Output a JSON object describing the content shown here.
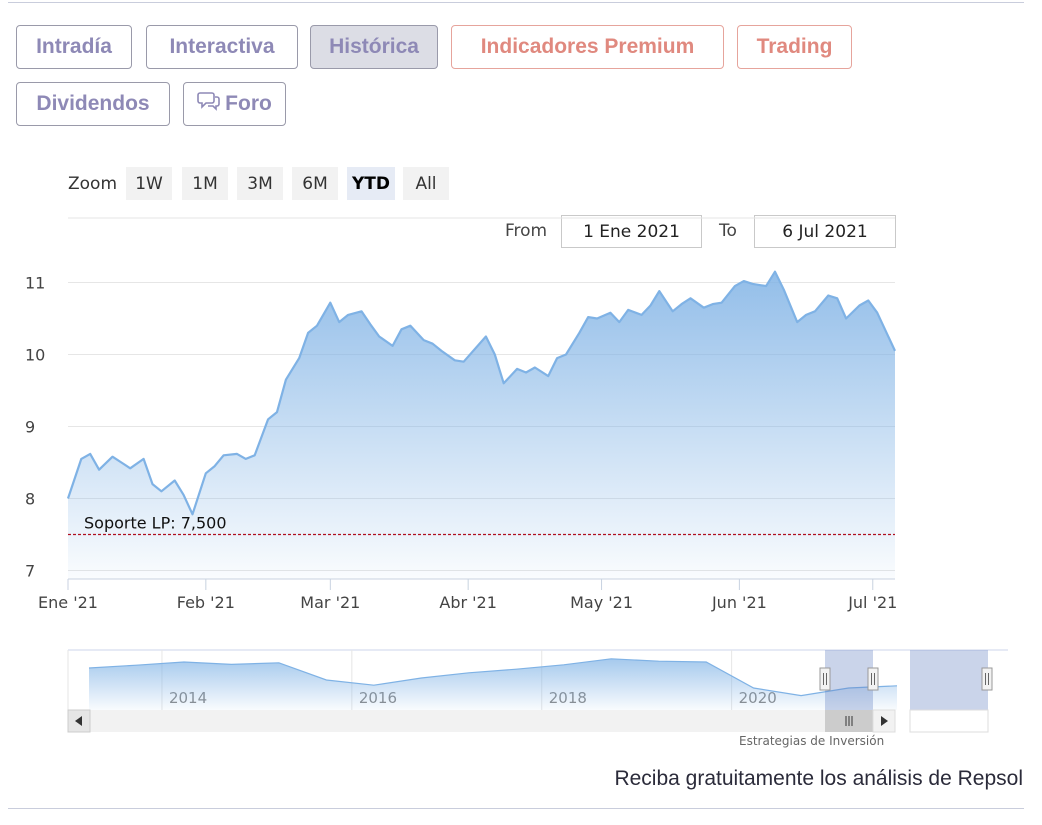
{
  "tabs": [
    {
      "label": "Intradía",
      "state": "normal"
    },
    {
      "label": "Interactiva",
      "state": "normal"
    },
    {
      "label": "Histórica",
      "state": "active"
    },
    {
      "label": "Indicadores Premium",
      "state": "premium"
    },
    {
      "label": "Trading",
      "state": "premium"
    },
    {
      "label": "Dividendos",
      "state": "normal"
    },
    {
      "label": "Foro",
      "state": "normal",
      "icon": "chat-bubbles-icon"
    }
  ],
  "zoom": {
    "label": "Zoom",
    "options": [
      "1W",
      "1M",
      "3M",
      "6M",
      "YTD",
      "All"
    ],
    "selected": "YTD"
  },
  "range": {
    "from_label": "From",
    "from_value": "1 Ene 2021",
    "to_label": "To",
    "to_value": "6 Jul 2021"
  },
  "credit": "Estrategias de Inversión",
  "cta": "Reciba gratuitamente los análisis de Repsol",
  "colors": {
    "tab_text": "#8e89b6",
    "premium_text": "#e0897f",
    "series_line": "#7fb2e5",
    "support_line": "#b01020"
  },
  "chart_data": {
    "type": "area",
    "title": "",
    "ylim": [
      7,
      11.2
    ],
    "yticks": [
      7,
      8,
      9,
      10,
      11
    ],
    "x_tick_labels": [
      "Ene '21",
      "Feb '21",
      "Mar '21",
      "Abr '21",
      "May '21",
      "Jun '21",
      "Jul '21"
    ],
    "grid": true,
    "annotation": {
      "label": "Soporte LP: 7,500",
      "value": 7.5
    },
    "series": [
      {
        "x": [
          "2021-01-01",
          "2021-01-04",
          "2021-01-06",
          "2021-01-08",
          "2021-01-11",
          "2021-01-13",
          "2021-01-15",
          "2021-01-18",
          "2021-01-20",
          "2021-01-22",
          "2021-01-25",
          "2021-01-27",
          "2021-01-29",
          "2021-02-01",
          "2021-02-03",
          "2021-02-05",
          "2021-02-08",
          "2021-02-10",
          "2021-02-12",
          "2021-02-15",
          "2021-02-17",
          "2021-02-19",
          "2021-02-22",
          "2021-02-24",
          "2021-02-26",
          "2021-03-01",
          "2021-03-03",
          "2021-03-05",
          "2021-03-08",
          "2021-03-10",
          "2021-03-12",
          "2021-03-15",
          "2021-03-17",
          "2021-03-19",
          "2021-03-22",
          "2021-03-24",
          "2021-03-26",
          "2021-03-29",
          "2021-03-31",
          "2021-04-05",
          "2021-04-07",
          "2021-04-09",
          "2021-04-12",
          "2021-04-14",
          "2021-04-16",
          "2021-04-19",
          "2021-04-21",
          "2021-04-23",
          "2021-04-26",
          "2021-04-28",
          "2021-04-30",
          "2021-05-03",
          "2021-05-05",
          "2021-05-07",
          "2021-05-10",
          "2021-05-12",
          "2021-05-14",
          "2021-05-17",
          "2021-05-19",
          "2021-05-21",
          "2021-05-24",
          "2021-05-26",
          "2021-05-28",
          "2021-05-31",
          "2021-06-02",
          "2021-06-04",
          "2021-06-07",
          "2021-06-09",
          "2021-06-11",
          "2021-06-14",
          "2021-06-16",
          "2021-06-18",
          "2021-06-21",
          "2021-06-23",
          "2021-06-25",
          "2021-06-28",
          "2021-06-30",
          "2021-07-02",
          "2021-07-06"
        ],
        "y": [
          8.0,
          8.55,
          8.62,
          8.4,
          8.58,
          8.5,
          8.42,
          8.55,
          8.2,
          8.1,
          8.25,
          8.05,
          7.78,
          8.35,
          8.45,
          8.6,
          8.62,
          8.55,
          8.6,
          9.1,
          9.2,
          9.65,
          9.95,
          10.3,
          10.4,
          10.72,
          10.45,
          10.55,
          10.6,
          10.42,
          10.25,
          10.12,
          10.35,
          10.4,
          10.2,
          10.15,
          10.05,
          9.92,
          9.9,
          10.25,
          10.0,
          9.6,
          9.8,
          9.75,
          9.82,
          9.7,
          9.95,
          10.0,
          10.3,
          10.52,
          10.5,
          10.58,
          10.45,
          10.62,
          10.55,
          10.68,
          10.88,
          10.6,
          10.7,
          10.78,
          10.65,
          10.7,
          10.72,
          10.95,
          11.02,
          10.98,
          10.95,
          11.15,
          10.9,
          10.45,
          10.55,
          10.6,
          10.82,
          10.78,
          10.5,
          10.68,
          10.75,
          10.58,
          10.05
        ]
      }
    ],
    "navigator": {
      "x_tick_labels": [
        "2014",
        "2016",
        "2018",
        "2020"
      ],
      "years": [
        2013.0,
        2013.5,
        2014.0,
        2014.5,
        2015.0,
        2015.5,
        2016.0,
        2016.5,
        2017.0,
        2017.5,
        2018.0,
        2018.5,
        2019.0,
        2019.5,
        2020.0,
        2020.5,
        2021.0,
        2021.51
      ],
      "values": [
        14.5,
        15.2,
        16.0,
        15.4,
        15.8,
        11.5,
        10.2,
        12.0,
        13.3,
        14.2,
        15.3,
        16.8,
        16.2,
        16.0,
        9.5,
        7.6,
        9.5,
        10.05
      ]
    }
  }
}
